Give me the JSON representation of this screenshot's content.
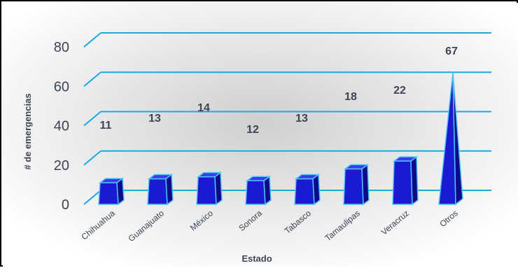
{
  "chart_data": {
    "type": "bar",
    "categories": [
      "Chihuahua",
      "Guanajuato",
      "México",
      "Sonora",
      "Tabasco",
      "Tamaulipas",
      "Veracruz",
      "Otros"
    ],
    "values": [
      11,
      13,
      14,
      12,
      13,
      18,
      22,
      67
    ],
    "xlabel": "Estado",
    "ylabel": "# de emergencias",
    "yticks": [
      0,
      20,
      40,
      60,
      80
    ],
    "ylim": [
      0,
      80
    ],
    "grid": true,
    "three_d": true,
    "last_bar_shape": "pyramid",
    "colors": {
      "bar_front": "#1a1ad0",
      "bar_side": "#0a0a8a",
      "bar_top": "#3a3aee",
      "bar_outline": "#4fc3f7",
      "gridline": "#1ea7e1",
      "text": "#3d4454",
      "background_center": "#d0d0d0",
      "background_edge": "#ffffff"
    }
  }
}
